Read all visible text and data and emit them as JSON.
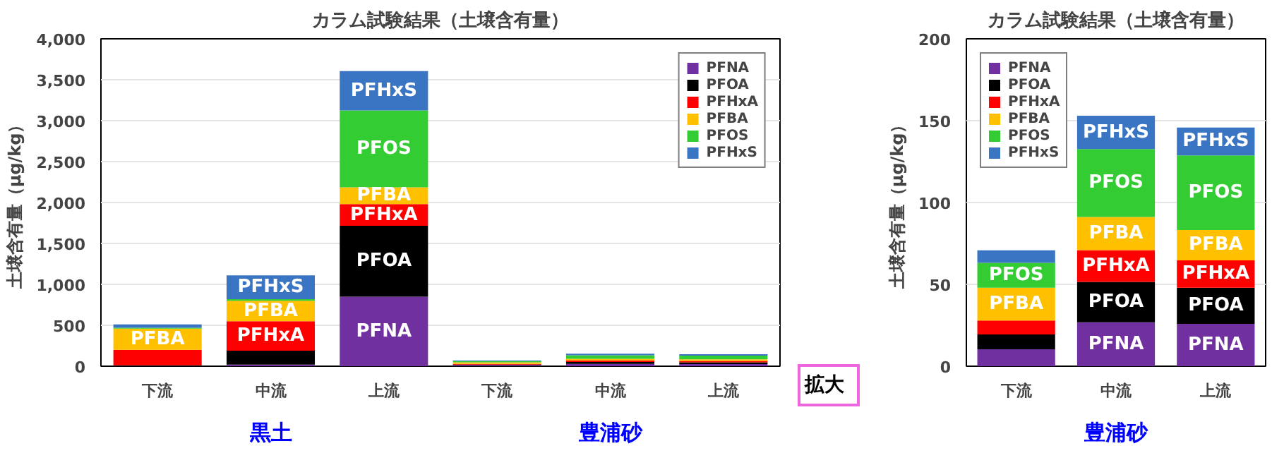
{
  "chart_data": [
    {
      "type": "bar",
      "stacked": true,
      "title": "カラム試験結果（土壌含有量）",
      "ylabel": "土壌含有量（μg/kg）",
      "categories": [
        "下流",
        "中流",
        "上流",
        "下流",
        "中流",
        "上流"
      ],
      "ylim": [
        0,
        4000
      ],
      "yticks": [
        0,
        {
          "value": 500,
          "label": "500"
        },
        {
          "value": 1000,
          "label": "1,000"
        },
        {
          "value": 1500,
          "label": "1,500"
        },
        {
          "value": 2000,
          "label": "2,000"
        },
        {
          "value": 2500,
          "label": "2,500"
        },
        {
          "value": 3000,
          "label": "3,000"
        },
        {
          "value": 3500,
          "label": "3,500"
        },
        {
          "value": 4000,
          "label": "4,000"
        }
      ],
      "grid": "y",
      "legend": "top right",
      "annotations": [
        "黒土",
        "豊浦砂"
      ],
      "series": [
        {
          "name": "PFNA",
          "color": "#7030a0",
          "values": [
            0,
            20,
            850,
            10,
            27,
            26
          ],
          "value_labels": [
            null,
            null,
            "PFNA",
            null,
            null,
            null
          ]
        },
        {
          "name": "PFOA",
          "color": "#000000",
          "values": [
            10,
            170,
            865,
            9,
            25,
            22
          ],
          "value_labels": [
            null,
            null,
            "PFOA",
            null,
            null,
            null
          ]
        },
        {
          "name": "PFHxA",
          "color": "#ff0000",
          "values": [
            190,
            360,
            265,
            9,
            19,
            17
          ],
          "value_labels": [
            null,
            "PFHxA",
            "PFHxA",
            null,
            null,
            null
          ]
        },
        {
          "name": "PFBA",
          "color": "#ffc000",
          "values": [
            260,
            250,
            205,
            20,
            20,
            19
          ],
          "value_labels": [
            "PFBA",
            "PFBA",
            "PFBA",
            null,
            null,
            null
          ]
        },
        {
          "name": "PFOS",
          "color": "#33cc33",
          "values": [
            10,
            20,
            940,
            15,
            42,
            46
          ],
          "value_labels": [
            null,
            null,
            "PFOS",
            null,
            null,
            null
          ]
        },
        {
          "name": "PFHxS",
          "color": "#3a75c4",
          "values": [
            40,
            290,
            480,
            8,
            20,
            17
          ],
          "value_labels": [
            null,
            "PFHxS",
            "PFHxS",
            null,
            null,
            null
          ]
        }
      ]
    },
    {
      "type": "bar",
      "stacked": true,
      "title": "カラム試験結果（土壌含有量）",
      "ylabel": "土壌含有量（μg/kg）",
      "categories": [
        "下流",
        "中流",
        "上流"
      ],
      "ylim": [
        0,
        200
      ],
      "yticks": [
        0,
        50,
        100,
        150,
        200
      ],
      "grid": "y",
      "legend": "top left",
      "annotations": [
        "拡大",
        "豊浦砂"
      ],
      "series": [
        {
          "name": "PFNA",
          "color": "#7030a0",
          "values": [
            10.3,
            26.8,
            25.9
          ],
          "value_labels": [
            null,
            "PFNA",
            "PFNA"
          ]
        },
        {
          "name": "PFOA",
          "color": "#000000",
          "values": [
            9.1,
            24.7,
            22
          ],
          "value_labels": [
            null,
            "PFOA",
            "PFOA"
          ]
        },
        {
          "name": "PFHxA",
          "color": "#ff0000",
          "values": [
            8.5,
            19.4,
            16.8
          ],
          "value_labels": [
            null,
            "PFHxA",
            "PFHxA"
          ]
        },
        {
          "name": "PFBA",
          "color": "#ffc000",
          "values": [
            20,
            20.3,
            18.5
          ],
          "value_labels": [
            "PFBA",
            "PFBA",
            "PFBA"
          ]
        },
        {
          "name": "PFOS",
          "color": "#33cc33",
          "values": [
            15.3,
            41.5,
            45.6
          ],
          "value_labels": [
            "PFOS",
            "PFOS",
            "PFOS"
          ]
        },
        {
          "name": "PFHxS",
          "color": "#3a75c4",
          "values": [
            7.6,
            20.3,
            17
          ],
          "value_labels": [
            null,
            "PFHxS",
            "PFHxS"
          ]
        }
      ]
    }
  ]
}
